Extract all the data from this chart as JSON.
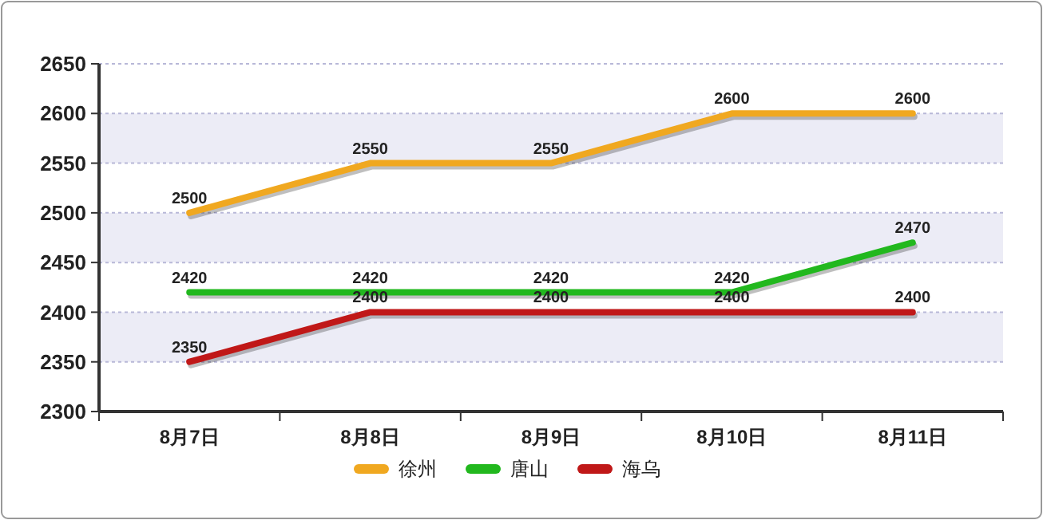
{
  "chart_data": {
    "type": "line",
    "categories": [
      "8月7日",
      "8月8日",
      "8月9日",
      "8月10日",
      "8月11日"
    ],
    "series": [
      {
        "name": "徐州",
        "color": "#f0a820",
        "values": [
          2500,
          2550,
          2550,
          2600,
          2600
        ]
      },
      {
        "name": "唐山",
        "color": "#22b81e",
        "values": [
          2420,
          2420,
          2420,
          2420,
          2470
        ]
      },
      {
        "name": "海乌",
        "color": "#c01818",
        "values": [
          2350,
          2400,
          2400,
          2400,
          2400
        ]
      }
    ],
    "ylim": [
      2300,
      2650
    ],
    "yticks": [
      2300,
      2350,
      2400,
      2450,
      2500,
      2550,
      2600,
      2650
    ],
    "grid": "y",
    "legend": "bottom",
    "data_labels": true,
    "marker": "none",
    "line_style": "solid"
  }
}
